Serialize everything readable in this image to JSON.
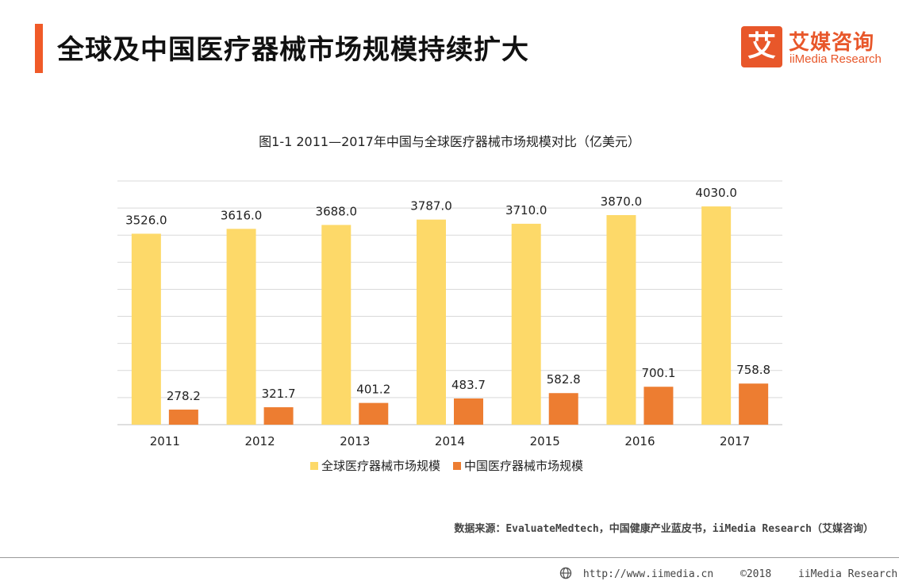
{
  "header": {
    "title": "全球及中国医疗器械市场规模持续扩大",
    "logo": {
      "mark": "艾",
      "name_cn": "艾媒咨询",
      "name_en": "iiMedia Research",
      "icon": "iimedia-logo-icon",
      "color": "#e8572a"
    },
    "accent_color": "#f05a28"
  },
  "chart_data": {
    "type": "bar",
    "title": "图1-1  2011—2017年中国与全球医疗器械市场规模对比（亿美元）",
    "categories": [
      "2011",
      "2012",
      "2013",
      "2014",
      "2015",
      "2016",
      "2017"
    ],
    "series": [
      {
        "name": "全球医疗器械市场规模",
        "color": "#fdd969",
        "values": [
          3526.0,
          3616.0,
          3688.0,
          3787.0,
          3710.0,
          3870.0,
          4030.0
        ],
        "labels": [
          "3526.0",
          "3616.0",
          "3688.0",
          "3787.0",
          "3710.0",
          "3870.0",
          "4030.0"
        ]
      },
      {
        "name": "中国医疗器械市场规模",
        "color": "#ed7d31",
        "values": [
          278.2,
          321.7,
          401.2,
          483.7,
          582.8,
          700.1,
          758.8
        ],
        "labels": [
          "278.2",
          "321.7",
          "401.2",
          "483.7",
          "582.8",
          "700.1",
          "758.8"
        ]
      }
    ],
    "ylim": [
      0,
      4500
    ],
    "yticks": [
      0,
      500,
      1000,
      1500,
      2000,
      2500,
      3000,
      3500,
      4000,
      4500
    ],
    "ytick_labels_shown": false,
    "grid": true,
    "legend": "bottom"
  },
  "source": "数据来源：EvaluateMedtech，中国健康产业蓝皮书，iiMedia Research（艾媒咨询）",
  "footer": {
    "url": "http://www.iimedia.cn",
    "copyright": "©2018",
    "company": "iiMedia Research  Inc",
    "icon": "globe-icon"
  }
}
